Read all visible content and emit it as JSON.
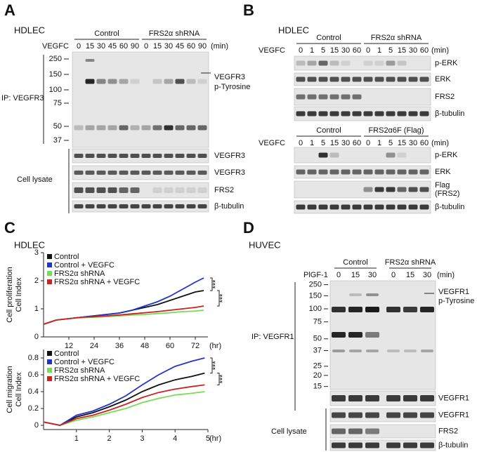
{
  "panel_a": {
    "letter": "A",
    "cell_line": "HDLEC",
    "treatment": "VEGFC",
    "unit": "(min)",
    "groups": [
      {
        "name": "Control",
        "times": [
          "0",
          "15",
          "30",
          "45",
          "60",
          "90"
        ]
      },
      {
        "name": "FRS2α shRNA",
        "times": [
          "0",
          "15",
          "30",
          "45",
          "60",
          "90"
        ]
      }
    ],
    "mw_markers": [
      "250",
      "150",
      "100",
      "75",
      "50",
      "37"
    ],
    "ip_label": "IP: VEGFR3",
    "arrow_label": [
      "VEGFR3",
      "p-Tyrosine"
    ],
    "lysate_label": "Cell lysate",
    "lysate_blots": [
      "VEGFR3",
      "VEGFR3",
      "FRS2",
      "β-tubulin"
    ]
  },
  "panel_b": {
    "letter": "B",
    "cell_line": "HDLEC",
    "blocks": [
      {
        "treatment": "VEGFC",
        "unit": "(min)",
        "groups": [
          {
            "name": "Control",
            "times": [
              "0",
              "1",
              "5",
              "15",
              "30",
              "60"
            ]
          },
          {
            "name": "FRS2α shRNA",
            "times": [
              "0",
              "1",
              "5",
              "15",
              "30",
              "60"
            ]
          }
        ],
        "blots": [
          [
            "p-ERK"
          ],
          [
            "ERK"
          ],
          [
            "FRS2"
          ],
          [
            "β-tubulin"
          ]
        ]
      },
      {
        "treatment": "VEGFC",
        "unit": "(min)",
        "groups": [
          {
            "name": "Control",
            "times": [
              "0",
              "1",
              "5",
              "15",
              "30",
              "60"
            ]
          },
          {
            "name": "FRS2α6F (Flag)",
            "times": [
              "0",
              "1",
              "5",
              "15",
              "30",
              "60"
            ]
          }
        ],
        "blots": [
          [
            "p-ERK"
          ],
          [
            "ERK"
          ],
          [
            "Flag",
            "(FRS2)"
          ],
          [
            "β-tubulin"
          ]
        ]
      }
    ]
  },
  "panel_c": {
    "letter": "C",
    "cell_line": "HDLEC",
    "charts": [
      {
        "type": "line",
        "y_label": [
          "Cell proliferation",
          "Cell Index"
        ],
        "x_unit": "(hr)",
        "x": [
          0,
          6,
          12,
          18,
          24,
          30,
          36,
          42,
          48,
          54,
          60,
          66,
          72,
          76
        ],
        "xlim": [
          0,
          78
        ],
        "xticks": [
          12,
          24,
          36,
          48,
          60,
          72
        ],
        "ylim": [
          0,
          3
        ],
        "yticks": [
          0,
          1,
          2,
          3
        ],
        "significance": [
          "***",
          "***"
        ],
        "series": [
          {
            "name": "Control",
            "color": "#111111",
            "values": [
              0.45,
              0.6,
              0.65,
              0.7,
              0.75,
              0.8,
              0.85,
              0.95,
              1.05,
              1.15,
              1.3,
              1.45,
              1.6,
              1.65
            ]
          },
          {
            "name": "Control + VEGFC",
            "color": "#2233cc",
            "values": [
              0.45,
              0.6,
              0.65,
              0.7,
              0.75,
              0.8,
              0.85,
              0.95,
              1.1,
              1.25,
              1.45,
              1.7,
              1.95,
              2.1
            ]
          },
          {
            "name": "FRS2α shRNA",
            "color": "#77dd55",
            "values": [
              0.45,
              0.6,
              0.65,
              0.68,
              0.7,
              0.72,
              0.75,
              0.78,
              0.8,
              0.83,
              0.86,
              0.9,
              0.92,
              0.95
            ]
          },
          {
            "name": "FRS2α shRNA + VEGFC",
            "color": "#cc2222",
            "values": [
              0.45,
              0.6,
              0.65,
              0.7,
              0.72,
              0.75,
              0.78,
              0.82,
              0.86,
              0.9,
              0.95,
              1.0,
              1.05,
              1.1
            ]
          }
        ]
      },
      {
        "type": "line",
        "y_label": [
          "Cell migration",
          "Cell Index"
        ],
        "x_unit": "(hr)",
        "x": [
          0,
          0.5,
          1,
          1.5,
          2,
          2.5,
          3,
          3.5,
          4,
          4.5,
          4.9
        ],
        "xlim": [
          0,
          5
        ],
        "xticks": [
          1,
          2,
          3,
          4,
          5
        ],
        "ylim": [
          -0.05,
          0.9
        ],
        "yticks": [
          0,
          0.2,
          0.4,
          0.6,
          0.8
        ],
        "significance": [
          "***",
          "***"
        ],
        "series": [
          {
            "name": "Control",
            "color": "#111111",
            "values": [
              0.04,
              0.0,
              0.1,
              0.15,
              0.22,
              0.3,
              0.4,
              0.48,
              0.54,
              0.58,
              0.62
            ]
          },
          {
            "name": "Control + VEGFC",
            "color": "#2233cc",
            "values": [
              0.04,
              0.0,
              0.12,
              0.17,
              0.25,
              0.35,
              0.48,
              0.6,
              0.7,
              0.76,
              0.8
            ]
          },
          {
            "name": "FRS2α shRNA",
            "color": "#77dd55",
            "values": [
              0.04,
              0.0,
              0.06,
              0.1,
              0.15,
              0.2,
              0.27,
              0.32,
              0.36,
              0.38,
              0.4
            ]
          },
          {
            "name": "FRS2α shRNA + VEGFC",
            "color": "#cc2222",
            "values": [
              0.04,
              0.0,
              0.08,
              0.12,
              0.18,
              0.25,
              0.33,
              0.39,
              0.43,
              0.46,
              0.48
            ]
          }
        ]
      }
    ]
  },
  "panel_d": {
    "letter": "D",
    "cell_line": "HUVEC",
    "treatment": "PlGF-1",
    "unit": "(min)",
    "groups": [
      {
        "name": "Control",
        "times": [
          "0",
          "15",
          "30"
        ]
      },
      {
        "name": "FRS2α shRNA",
        "times": [
          "0",
          "15",
          "30"
        ]
      }
    ],
    "mw_markers": [
      "250",
      "150",
      "100",
      "75",
      "50",
      "37",
      "25",
      "20",
      "15"
    ],
    "ip_label": "IP: VEGFR1",
    "arrow_label": [
      "VEGFR1",
      "p-Tyrosine"
    ],
    "ip_blots": [
      "VEGFR1"
    ],
    "lysate_label": "Cell lysate",
    "lysate_blots": [
      "VEGFR1",
      "FRS2",
      "β-tubulin"
    ]
  }
}
